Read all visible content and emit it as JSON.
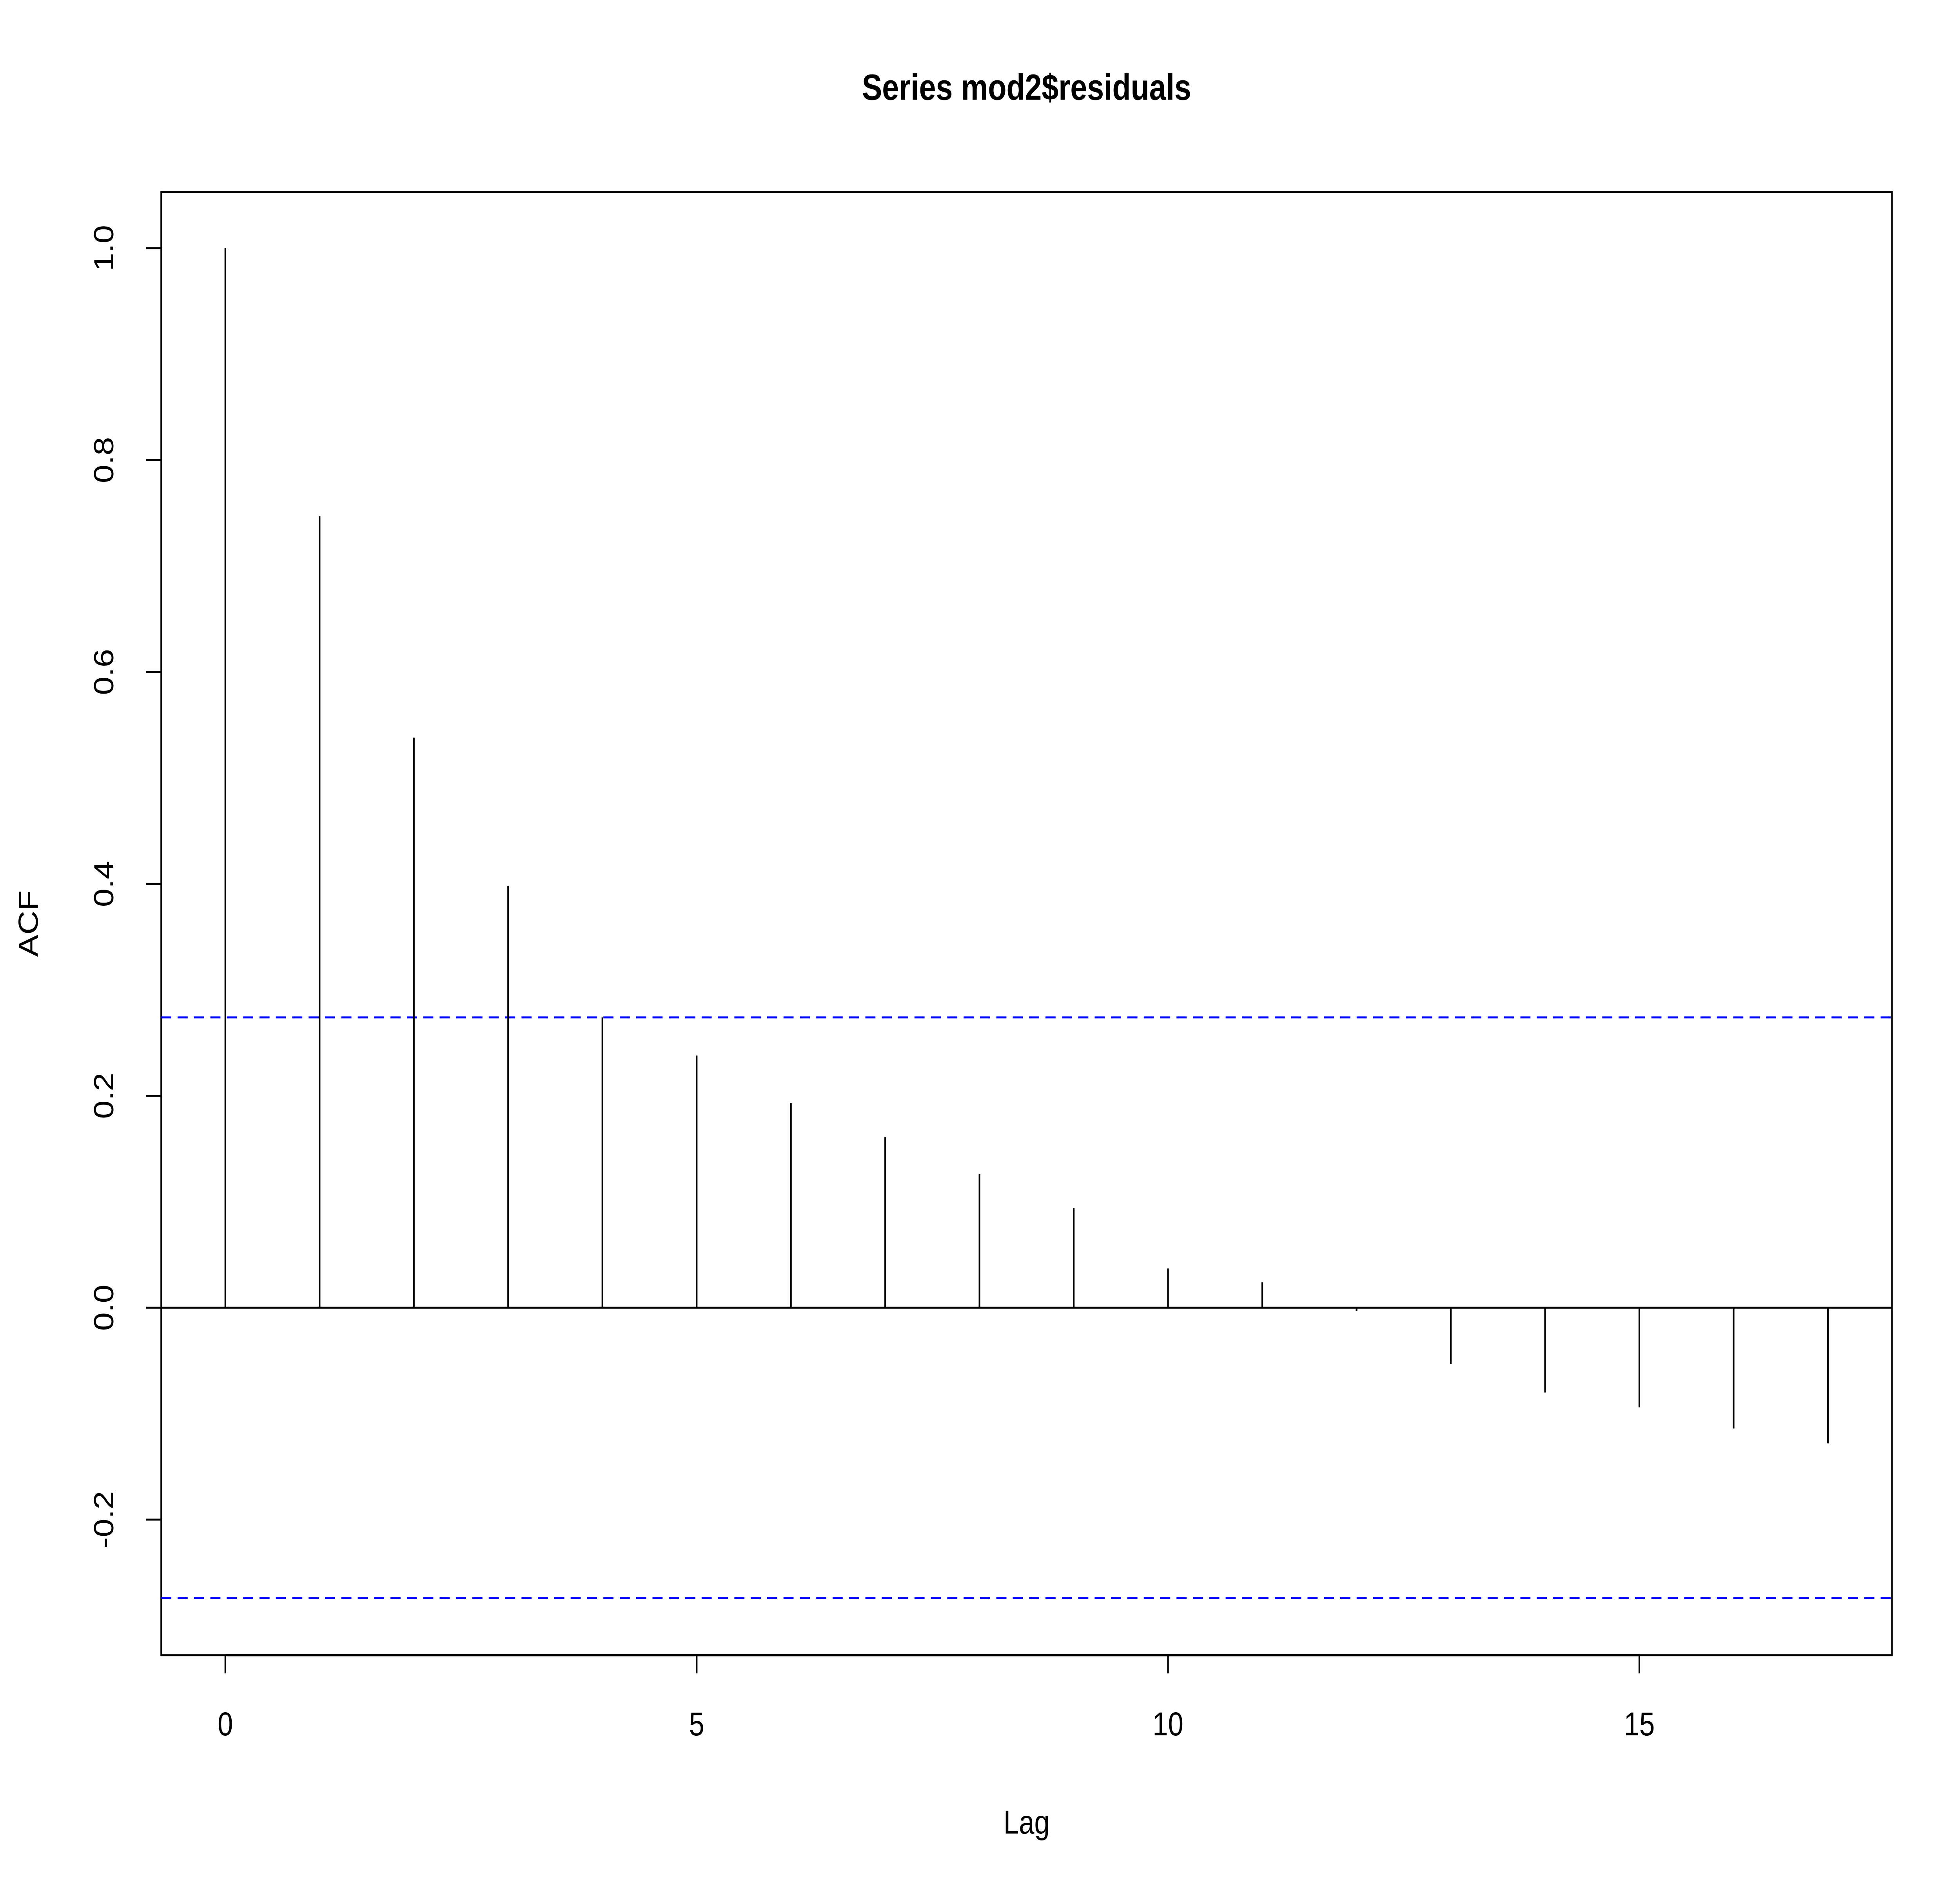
{
  "chart_data": {
    "type": "bar",
    "title": "Series  mod2$residuals",
    "xlabel": "Lag",
    "ylabel": "ACF",
    "x": [
      0,
      1,
      2,
      3,
      4,
      5,
      6,
      7,
      8,
      9,
      10,
      11,
      12,
      13,
      14,
      15,
      16,
      17
    ],
    "values": [
      1.0,
      0.747,
      0.538,
      0.398,
      0.274,
      0.238,
      0.193,
      0.161,
      0.126,
      0.094,
      0.037,
      0.024,
      -0.003,
      -0.053,
      -0.08,
      -0.094,
      -0.114,
      -0.128
    ],
    "xlim": [
      -0.68,
      17.68
    ],
    "ylim": [
      -0.328,
      1.053
    ],
    "xticks": [
      0,
      5,
      10,
      15
    ],
    "xtick_labels": [
      "0",
      "5",
      "10",
      "15"
    ],
    "yticks": [
      -0.2,
      0.0,
      0.2,
      0.4,
      0.6,
      0.8,
      1.0
    ],
    "ytick_labels": [
      "-0.2",
      "0.0",
      "0.2",
      "0.4",
      "0.6",
      "0.8",
      "1.0"
    ],
    "confidence_bounds": [
      0.274,
      -0.274
    ],
    "confidence_color": "#0000ff",
    "bar_color": "#000000",
    "grid": false
  }
}
